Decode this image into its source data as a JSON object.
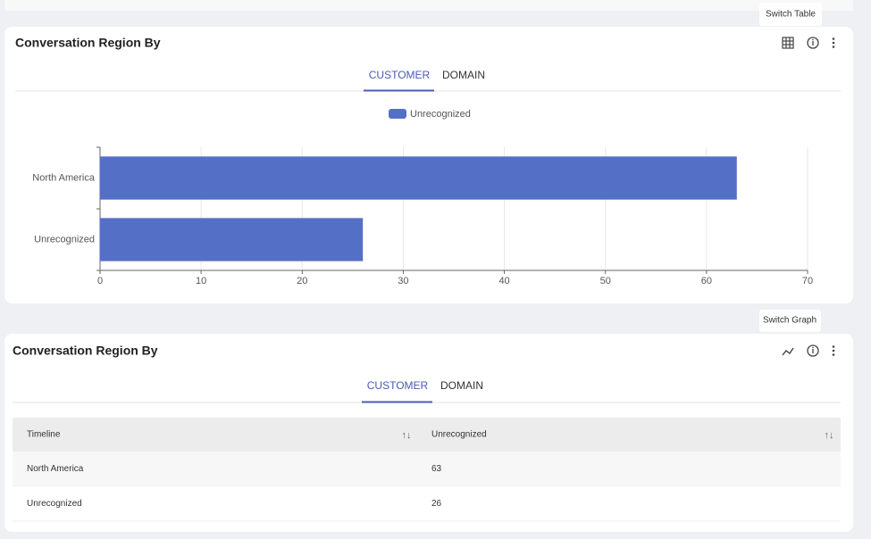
{
  "top_tooltip": "Switch Table",
  "chart_panel": {
    "title": "Conversation Region By",
    "tabs": [
      "CUSTOMER",
      "DOMAIN"
    ]
  },
  "chart_data": {
    "type": "bar",
    "orientation": "horizontal",
    "categories": [
      "North America",
      "Unrecognized"
    ],
    "series": [
      {
        "name": "Unrecognized",
        "color": "#5470c6",
        "values": [
          63,
          26
        ]
      }
    ],
    "xlim": [
      0,
      70
    ],
    "xticks": [
      0,
      10,
      20,
      30,
      40,
      50,
      60,
      70
    ],
    "grid": true,
    "legend": "top"
  },
  "bottom_tooltip": "Switch Graph",
  "table_panel": {
    "title": "Conversation Region By",
    "tabs": [
      "CUSTOMER",
      "DOMAIN"
    ],
    "table": {
      "columns": [
        "Timeline",
        "Unrecognized"
      ],
      "rows": [
        [
          "North America",
          63
        ],
        [
          "Unrecognized",
          26
        ]
      ]
    }
  }
}
